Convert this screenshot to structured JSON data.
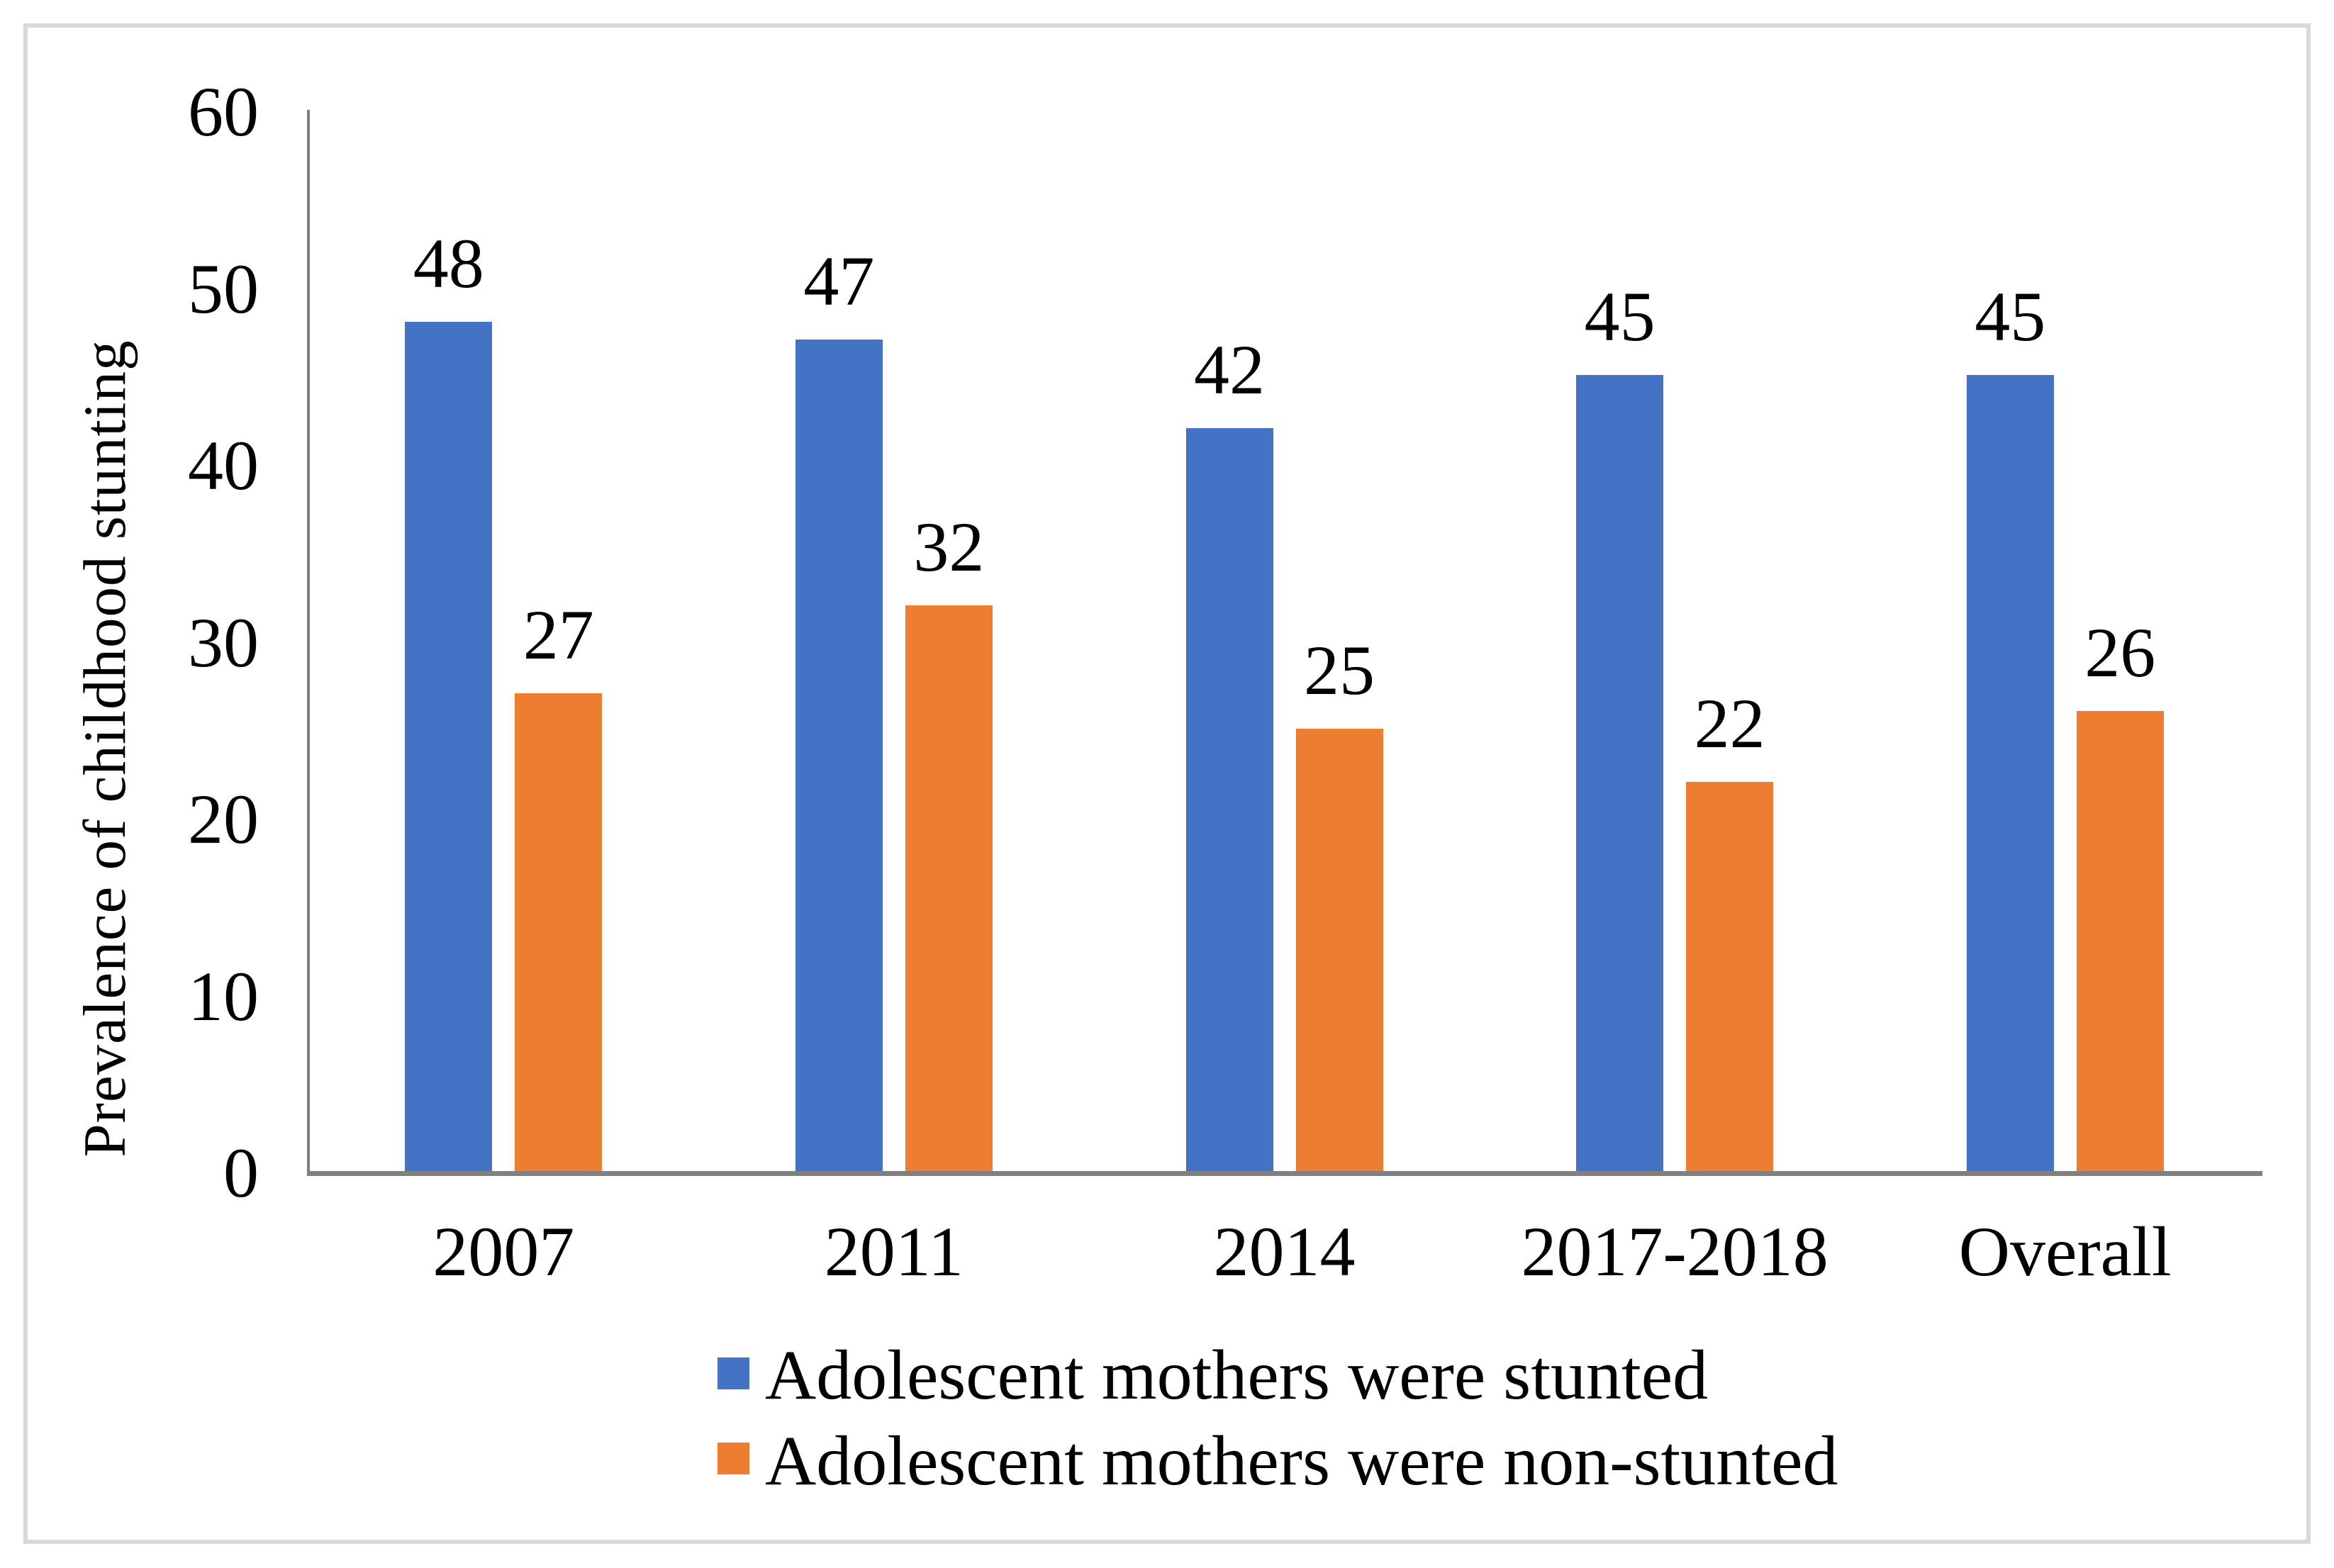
{
  "chart_data": {
    "type": "bar",
    "title": "",
    "xlabel": "",
    "ylabel": "Prevalence of childhood stunting",
    "ylim": [
      0,
      60
    ],
    "yticks": [
      0,
      10,
      20,
      30,
      40,
      50,
      60
    ],
    "grid": false,
    "legend_position": "bottom-left",
    "categories": [
      "2007",
      "2011",
      "2014",
      "2017-2018",
      "Overall"
    ],
    "series": [
      {
        "name": "Adolescent mothers were stunted",
        "color": "#4472C4",
        "values": [
          48,
          47,
          42,
          45,
          45
        ]
      },
      {
        "name": "Adolescent mothers were non-stunted",
        "color": "#ED7D31",
        "values": [
          27,
          32,
          25,
          22,
          26
        ]
      }
    ]
  },
  "colors": {
    "axis": "#808080",
    "frame_border": "#D9D9D9",
    "background": "#FFFFFF",
    "text": "#000000"
  }
}
